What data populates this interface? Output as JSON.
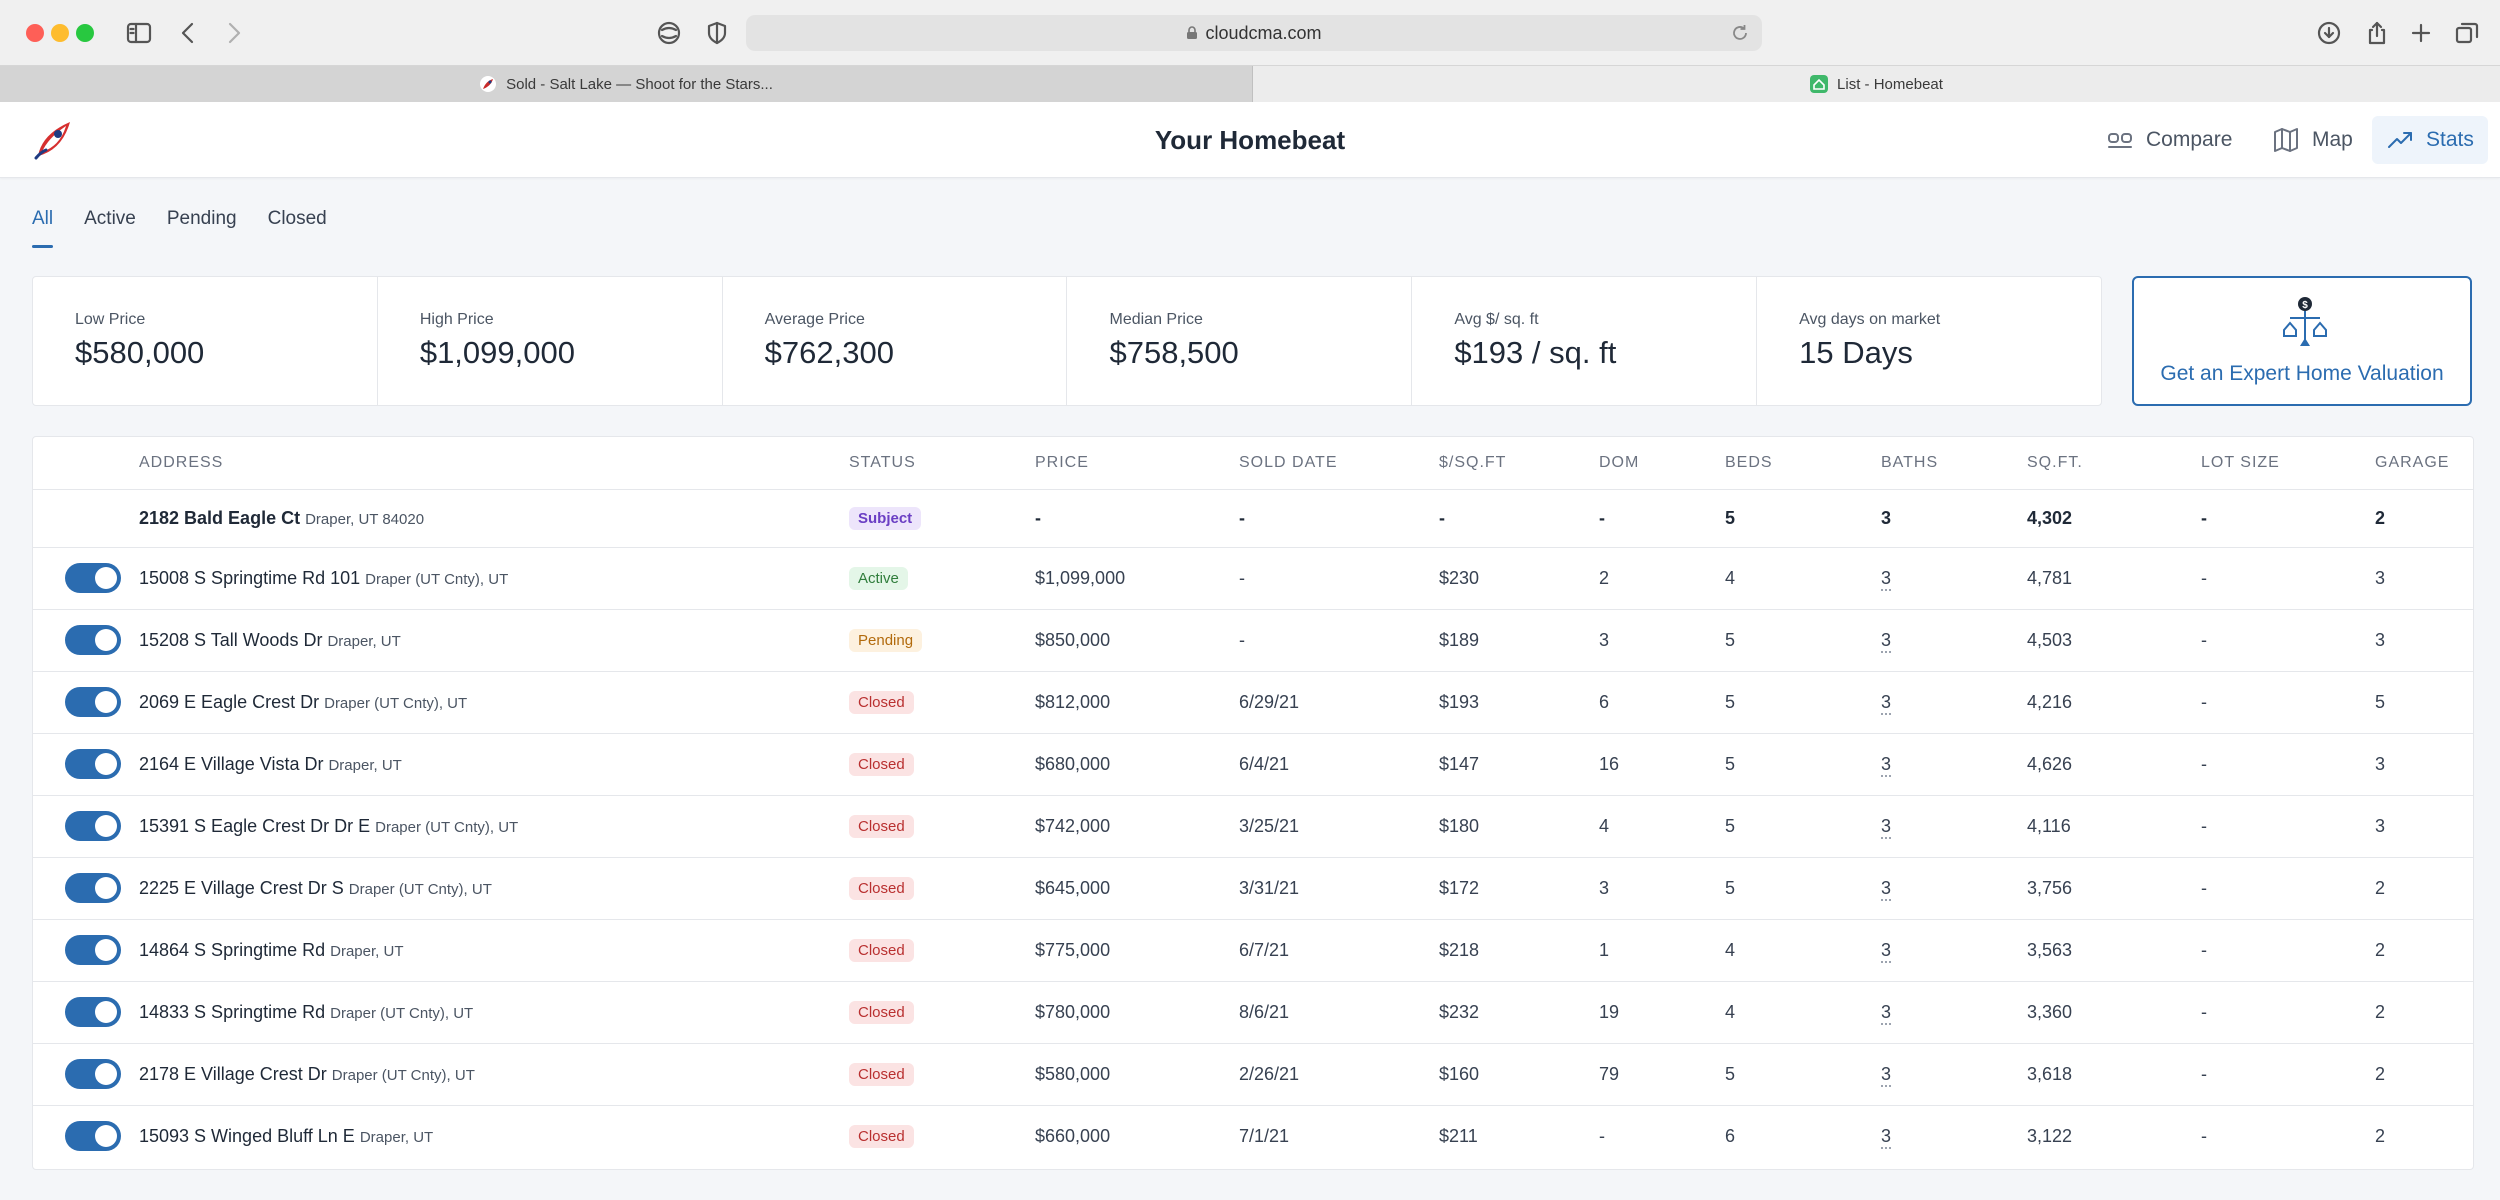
{
  "browser": {
    "url": "cloudcma.com",
    "tabs": [
      {
        "label": "Sold - Salt Lake — Shoot for the Stars..."
      },
      {
        "label": "List - Homebeat"
      }
    ]
  },
  "header": {
    "title": "Your Homebeat",
    "nav": {
      "compare": "Compare",
      "map": "Map",
      "stats": "Stats"
    }
  },
  "filters": {
    "all": "All",
    "active": "Active",
    "pending": "Pending",
    "closed": "Closed"
  },
  "stats": [
    {
      "label": "Low Price",
      "value": "$580,000"
    },
    {
      "label": "High Price",
      "value": "$1,099,000"
    },
    {
      "label": "Average Price",
      "value": "$762,300"
    },
    {
      "label": "Median Price",
      "value": "$758,500"
    },
    {
      "label": "Avg $/ sq. ft",
      "value": "$193 / sq. ft"
    },
    {
      "label": "Avg days on market",
      "value": "15 Days"
    }
  ],
  "valuation": {
    "label": "Get an Expert Home Valuation",
    "icon_text": "$"
  },
  "table": {
    "headers": {
      "address": "ADDRESS",
      "status": "STATUS",
      "price": "PRICE",
      "sold_date": "SOLD DATE",
      "ppsf": "$/SQ.FT",
      "dom": "DOM",
      "beds": "BEDS",
      "baths": "BATHS",
      "sqft": "SQ.FT.",
      "lot": "LOT SIZE",
      "garage": "GARAGE"
    },
    "rows": [
      {
        "street": "2182 Bald Eagle Ct",
        "city": "Draper, UT 84020",
        "status": "Subject",
        "price": "-",
        "sold": "-",
        "ppsf": "-",
        "dom": "-",
        "beds": "5",
        "baths": "3",
        "sqft": "4,302",
        "lot": "-",
        "garage": "2"
      },
      {
        "street": "15008 S Springtime Rd 101",
        "city": "Draper (UT Cnty), UT",
        "status": "Active",
        "price": "$1,099,000",
        "sold": "-",
        "ppsf": "$230",
        "dom": "2",
        "beds": "4",
        "baths": "3",
        "sqft": "4,781",
        "lot": "-",
        "garage": "3"
      },
      {
        "street": "15208 S Tall Woods Dr",
        "city": "Draper, UT",
        "status": "Pending",
        "price": "$850,000",
        "sold": "-",
        "ppsf": "$189",
        "dom": "3",
        "beds": "5",
        "baths": "3",
        "sqft": "4,503",
        "lot": "-",
        "garage": "3"
      },
      {
        "street": "2069 E Eagle Crest Dr",
        "city": "Draper (UT Cnty), UT",
        "status": "Closed",
        "price": "$812,000",
        "sold": "6/29/21",
        "ppsf": "$193",
        "dom": "6",
        "beds": "5",
        "baths": "3",
        "sqft": "4,216",
        "lot": "-",
        "garage": "5"
      },
      {
        "street": "2164 E Village Vista Dr",
        "city": "Draper, UT",
        "status": "Closed",
        "price": "$680,000",
        "sold": "6/4/21",
        "ppsf": "$147",
        "dom": "16",
        "beds": "5",
        "baths": "3",
        "sqft": "4,626",
        "lot": "-",
        "garage": "3"
      },
      {
        "street": "15391 S Eagle Crest Dr Dr E",
        "city": "Draper (UT Cnty), UT",
        "status": "Closed",
        "price": "$742,000",
        "sold": "3/25/21",
        "ppsf": "$180",
        "dom": "4",
        "beds": "5",
        "baths": "3",
        "sqft": "4,116",
        "lot": "-",
        "garage": "3"
      },
      {
        "street": "2225 E Village Crest Dr S",
        "city": "Draper (UT Cnty), UT",
        "status": "Closed",
        "price": "$645,000",
        "sold": "3/31/21",
        "ppsf": "$172",
        "dom": "3",
        "beds": "5",
        "baths": "3",
        "sqft": "3,756",
        "lot": "-",
        "garage": "2"
      },
      {
        "street": "14864 S Springtime Rd",
        "city": "Draper, UT",
        "status": "Closed",
        "price": "$775,000",
        "sold": "6/7/21",
        "ppsf": "$218",
        "dom": "1",
        "beds": "4",
        "baths": "3",
        "sqft": "3,563",
        "lot": "-",
        "garage": "2"
      },
      {
        "street": "14833 S Springtime Rd",
        "city": "Draper (UT Cnty), UT",
        "status": "Closed",
        "price": "$780,000",
        "sold": "8/6/21",
        "ppsf": "$232",
        "dom": "19",
        "beds": "4",
        "baths": "3",
        "sqft": "3,360",
        "lot": "-",
        "garage": "2"
      },
      {
        "street": "2178 E Village Crest Dr",
        "city": "Draper (UT Cnty), UT",
        "status": "Closed",
        "price": "$580,000",
        "sold": "2/26/21",
        "ppsf": "$160",
        "dom": "79",
        "beds": "5",
        "baths": "3",
        "sqft": "3,618",
        "lot": "-",
        "garage": "2"
      },
      {
        "street": "15093 S Winged Bluff Ln E",
        "city": "Draper, UT",
        "status": "Closed",
        "price": "$660,000",
        "sold": "7/1/21",
        "ppsf": "$211",
        "dom": "-",
        "beds": "6",
        "baths": "3",
        "sqft": "3,122",
        "lot": "-",
        "garage": "2"
      }
    ]
  },
  "colors": {
    "accent": "#2b6cb0",
    "subject": "#6b3fc4",
    "active": "#2f7d3b",
    "pending": "#b26a0c",
    "closed": "#b93030"
  }
}
